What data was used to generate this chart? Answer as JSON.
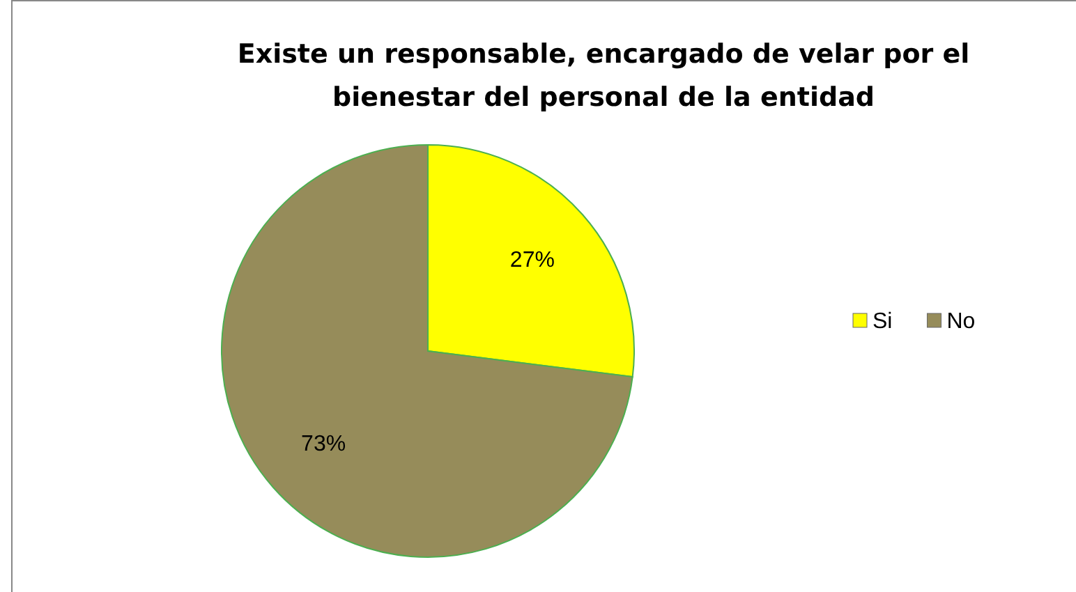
{
  "chart_data": {
    "type": "pie",
    "title": "Existe un responsable, encargado de velar por el bienestar del personal de la entidad",
    "categories": [
      "Si",
      "No"
    ],
    "values": [
      27,
      73
    ],
    "colors": [
      "#ffff00",
      "#968c5a"
    ],
    "value_labels": [
      "27%",
      "73%"
    ],
    "legend": "right"
  }
}
